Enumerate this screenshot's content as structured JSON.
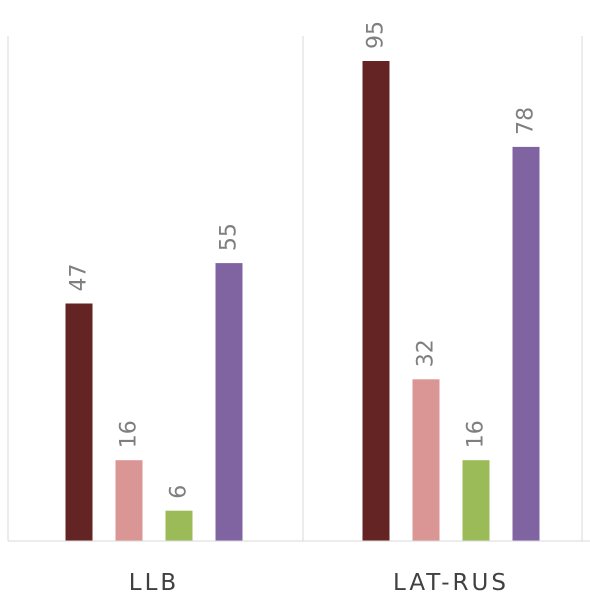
{
  "chart_data": {
    "type": "bar",
    "categories": [
      "LLB",
      "LAT-RUS"
    ],
    "series": [
      {
        "values": [
          47,
          95
        ],
        "color": "#632423"
      },
      {
        "values": [
          16,
          32
        ],
        "color": "#D99694"
      },
      {
        "values": [
          6,
          16
        ],
        "color": "#9BBB59"
      },
      {
        "values": [
          55,
          78
        ],
        "color": "#8064A2"
      }
    ],
    "data_labels": true,
    "data_label_orientation": "rotated-vertical",
    "ylim": [
      0,
      100
    ],
    "y_axis_visible": false,
    "legend": "none",
    "grid": false,
    "category_separators": true,
    "title": "",
    "xlabel": "",
    "ylabel": ""
  }
}
